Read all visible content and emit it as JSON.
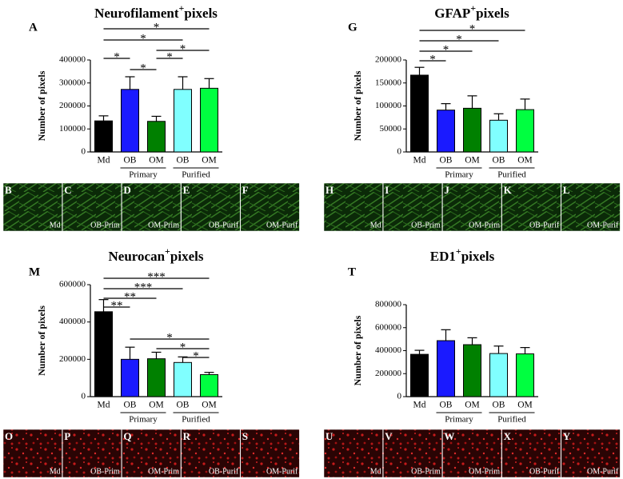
{
  "chart_data": [
    {
      "type": "bar",
      "letter": "A",
      "title": "Neurofilament",
      "title_sup": "+",
      "title_end": "pixels",
      "y_label": "Number of pixels",
      "categories": [
        "Md",
        "OB",
        "OM",
        "OB",
        "OM"
      ],
      "values": [
        135000,
        272000,
        133000,
        272000,
        277000
      ],
      "errors": [
        22000,
        55000,
        22000,
        55000,
        42000
      ],
      "colors": [
        "#000000",
        "#1a1aff",
        "#008000",
        "#80ffff",
        "#00ff40"
      ],
      "ylim": [
        0,
        400000
      ],
      "yticks": [
        0,
        100000,
        200000,
        300000,
        400000
      ],
      "groups": [
        {
          "label": "Primary",
          "categories": [
            1,
            2
          ]
        },
        {
          "label": "Purified",
          "categories": [
            3,
            4
          ]
        }
      ],
      "significance": [
        {
          "from": 0,
          "to": 4,
          "label": "*"
        },
        {
          "from": 0,
          "to": 3,
          "label": "*"
        },
        {
          "from": 2,
          "to": 4,
          "label": "*"
        },
        {
          "from": 0,
          "to": 1,
          "label": "*"
        },
        {
          "from": 2,
          "to": 3,
          "label": "*"
        },
        {
          "from": 1,
          "to": 2,
          "label": "*"
        }
      ],
      "image_color": "green",
      "images": [
        {
          "letter": "B",
          "label": "Md"
        },
        {
          "letter": "C",
          "label": "OB-Prim"
        },
        {
          "letter": "D",
          "label": "OM-Prim"
        },
        {
          "letter": "E",
          "label": "OB-Purif"
        },
        {
          "letter": "F",
          "label": "OM-Purif"
        }
      ]
    },
    {
      "type": "bar",
      "letter": "G",
      "title": "GFAP",
      "title_sup": "+",
      "title_end": "pixels",
      "y_label": "Number of pixels",
      "categories": [
        "Md",
        "OB",
        "OM",
        "OB",
        "OM"
      ],
      "values": [
        167000,
        91000,
        95000,
        69000,
        92000
      ],
      "errors": [
        17000,
        14000,
        27000,
        14000,
        23000
      ],
      "colors": [
        "#000000",
        "#1a1aff",
        "#008000",
        "#80ffff",
        "#00ff40"
      ],
      "ylim": [
        0,
        200000
      ],
      "yticks": [
        0,
        50000,
        100000,
        150000,
        200000
      ],
      "groups": [
        {
          "label": "Primary",
          "categories": [
            1,
            2
          ]
        },
        {
          "label": "Purified",
          "categories": [
            3,
            4
          ]
        }
      ],
      "significance": [
        {
          "from": 0,
          "to": 4,
          "label": "*"
        },
        {
          "from": 0,
          "to": 3,
          "label": "*"
        },
        {
          "from": 0,
          "to": 2,
          "label": "*"
        },
        {
          "from": 0,
          "to": 1,
          "label": "*"
        }
      ],
      "image_color": "green",
      "images": [
        {
          "letter": "H",
          "label": "Md"
        },
        {
          "letter": "I",
          "label": "OB-Prim"
        },
        {
          "letter": "J",
          "label": "OM-Prim"
        },
        {
          "letter": "K",
          "label": "OB-Purif"
        },
        {
          "letter": "L",
          "label": "OM-Purif"
        }
      ]
    },
    {
      "type": "bar",
      "letter": "M",
      "title": "Neurocan",
      "title_sup": "+",
      "title_end": "pixels",
      "y_label": "Number of pixels",
      "categories": [
        "Md",
        "OB",
        "OM",
        "OB",
        "OM"
      ],
      "values": [
        455000,
        200000,
        203000,
        183000,
        118000
      ],
      "errors": [
        65000,
        65000,
        35000,
        30000,
        12000
      ],
      "colors": [
        "#000000",
        "#1a1aff",
        "#008000",
        "#80ffff",
        "#00ff40"
      ],
      "ylim": [
        0,
        600000
      ],
      "yticks": [
        0,
        200000,
        400000,
        600000
      ],
      "groups": [
        {
          "label": "Primary",
          "categories": [
            1,
            2
          ]
        },
        {
          "label": "Purified",
          "categories": [
            3,
            4
          ]
        }
      ],
      "significance": [
        {
          "from": 0,
          "to": 4,
          "label": "***"
        },
        {
          "from": 0,
          "to": 3,
          "label": "***"
        },
        {
          "from": 0,
          "to": 2,
          "label": "**"
        },
        {
          "from": 0,
          "to": 1,
          "label": "**"
        },
        {
          "from": 1,
          "to": 4,
          "label": "*"
        },
        {
          "from": 2,
          "to": 4,
          "label": "*"
        },
        {
          "from": 3,
          "to": 4,
          "label": "*"
        }
      ],
      "image_color": "red",
      "images": [
        {
          "letter": "O",
          "label": "Md"
        },
        {
          "letter": "P",
          "label": "OB-Prim"
        },
        {
          "letter": "Q",
          "label": "OM-Prim"
        },
        {
          "letter": "R",
          "label": "OB-Purif"
        },
        {
          "letter": "S",
          "label": "OM-Purif"
        }
      ]
    },
    {
      "type": "bar",
      "letter": "T",
      "title": "ED1",
      "title_sup": "+",
      "title_end": "pixels",
      "y_label": "Number of pixels",
      "categories": [
        "Md",
        "OB",
        "OM",
        "OB",
        "OM"
      ],
      "values": [
        368000,
        487000,
        452000,
        375000,
        372000
      ],
      "errors": [
        35000,
        95000,
        60000,
        65000,
        55000
      ],
      "colors": [
        "#000000",
        "#1a1aff",
        "#008000",
        "#80ffff",
        "#00ff40"
      ],
      "ylim": [
        0,
        800000
      ],
      "yticks": [
        0,
        200000,
        400000,
        600000,
        800000
      ],
      "groups": [
        {
          "label": "Primary",
          "categories": [
            1,
            2
          ]
        },
        {
          "label": "Purified",
          "categories": [
            3,
            4
          ]
        }
      ],
      "significance": [],
      "image_color": "red",
      "images": [
        {
          "letter": "U",
          "label": "Md"
        },
        {
          "letter": "V",
          "label": "OB-Prim"
        },
        {
          "letter": "W",
          "label": "OM-Prim"
        },
        {
          "letter": "X",
          "label": "OB-Purif"
        },
        {
          "letter": "Y",
          "label": "OM-Purif"
        }
      ]
    }
  ]
}
